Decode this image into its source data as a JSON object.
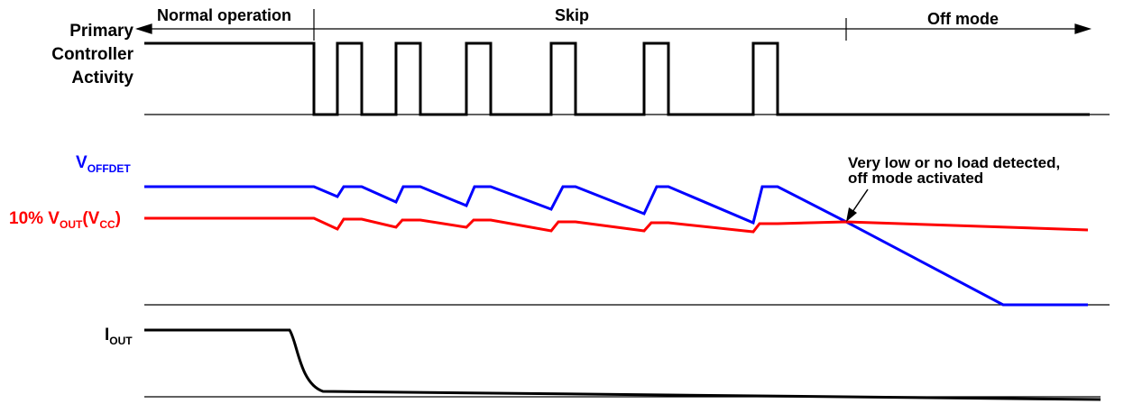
{
  "regions": {
    "normal": "Normal operation",
    "skip": "Skip",
    "off": "Off mode"
  },
  "labels": {
    "primary_line1": "Primary",
    "primary_line2": "Controller",
    "primary_line3": "Activity",
    "voffdet_main": "V",
    "voffdet_sub": "OFFDET",
    "vout_prefix": "10% V",
    "vout_sub": "OUT",
    "vout_paren_open": "(V",
    "vcc_sub": "CC",
    "vout_paren_close": ")",
    "iout_main": "I",
    "iout_sub": "OUT"
  },
  "annotation": {
    "line1": "Very low or no load detected,",
    "line2": "off mode activated"
  },
  "colors": {
    "voffdet": "#0000ff",
    "vout": "#ff0000",
    "signal": "#000000"
  }
}
